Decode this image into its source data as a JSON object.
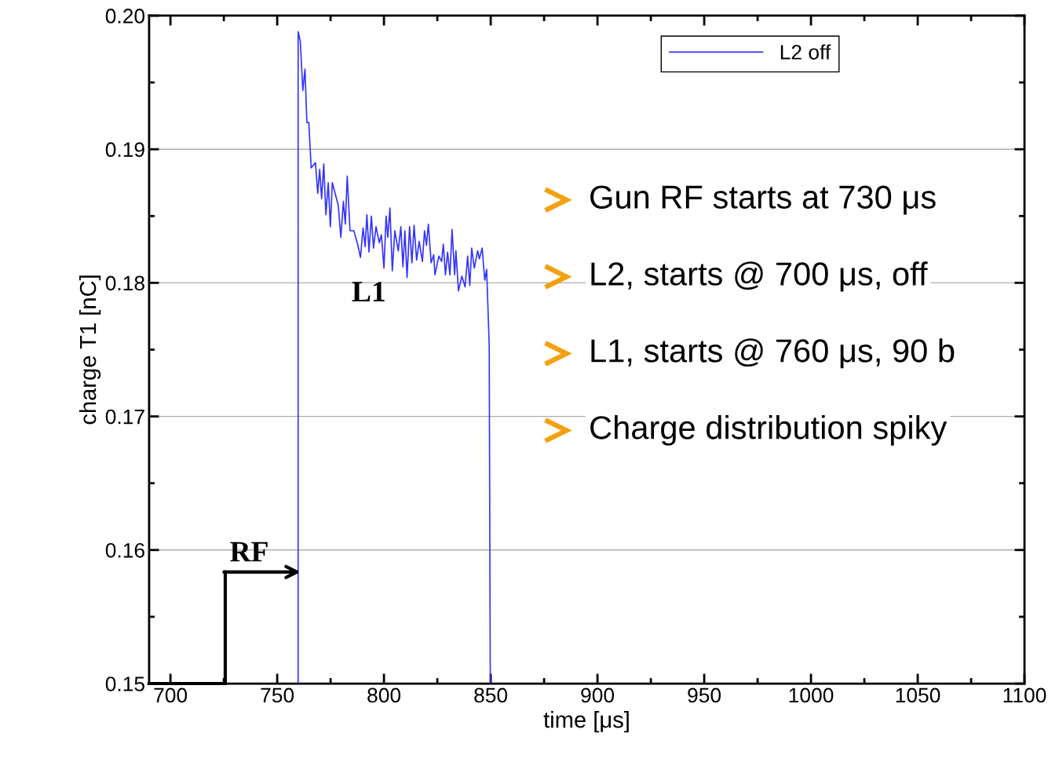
{
  "chart_data": {
    "type": "line",
    "xlabel": "time [μs]",
    "ylabel": "charge T1 [nC]",
    "xlim": [
      690,
      1100
    ],
    "ylim": [
      0.15,
      0.2
    ],
    "xticks": [
      700,
      750,
      800,
      850,
      900,
      950,
      1000,
      1050,
      1100
    ],
    "yticks": [
      0.15,
      0.16,
      0.17,
      0.18,
      0.19,
      {
        "value": 0.2,
        "label": "0.20"
      }
    ],
    "grid": "y",
    "legend": "top right",
    "marker": "none",
    "line_style": "solid",
    "series": [
      {
        "name": "L2 off",
        "color": "#3333ff",
        "x": [
          759.8,
          759.8,
          760.8,
          762.0,
          763.0,
          763.9,
          764.8,
          765.9,
          767.9,
          769.0,
          769.9,
          770.8,
          771.8,
          772.8,
          773.9,
          774.9,
          775.8,
          778.6,
          779.8,
          781.0,
          781.9,
          782.8,
          784.1,
          785.9,
          787.8,
          789.0,
          790.2,
          791.2,
          792.0,
          793.0,
          794.1,
          795.1,
          796.3,
          797.8,
          798.8,
          800.0,
          801.0,
          801.8,
          802.8,
          803.9,
          805.1,
          806.7,
          807.9,
          808.9,
          809.8,
          810.8,
          812.0,
          813.1,
          814.1,
          815.3,
          816.5,
          818.0,
          819.0,
          819.9,
          820.8,
          822.1,
          823.3,
          823.9,
          825.7,
          827.0,
          827.8,
          828.8,
          829.8,
          830.9,
          831.9,
          833.1,
          833.7,
          834.9,
          836.5,
          838.0,
          839.2,
          840.2,
          841.1,
          842.3,
          843.9,
          844.7,
          846.0,
          847.2,
          848.1,
          849.3,
          849.8
        ],
        "values": [
          0.15,
          0.1988,
          0.1981,
          0.1944,
          0.196,
          0.192,
          0.192,
          0.1886,
          0.189,
          0.1867,
          0.1885,
          0.1863,
          0.1889,
          0.1851,
          0.1875,
          0.1842,
          0.1875,
          0.1858,
          0.1834,
          0.1861,
          0.1844,
          0.188,
          0.1839,
          0.1839,
          0.1828,
          0.1819,
          0.1841,
          0.1827,
          0.1851,
          0.1823,
          0.185,
          0.1826,
          0.1842,
          0.183,
          0.1836,
          0.1811,
          0.185,
          0.1834,
          0.1856,
          0.1809,
          0.1839,
          0.1824,
          0.1842,
          0.1812,
          0.1839,
          0.1804,
          0.1842,
          0.1815,
          0.1843,
          0.1817,
          0.1831,
          0.1816,
          0.1839,
          0.1828,
          0.1844,
          0.1815,
          0.1821,
          0.1806,
          0.182,
          0.1816,
          0.1829,
          0.1806,
          0.1823,
          0.1806,
          0.184,
          0.1806,
          0.1824,
          0.1794,
          0.1805,
          0.1797,
          0.182,
          0.1798,
          0.1826,
          0.1811,
          0.1824,
          0.1818,
          0.1826,
          0.1802,
          0.181,
          0.1753,
          0.15
        ]
      }
    ],
    "annotations": [
      "RF",
      "L1",
      "Gun RF starts at 730 μs",
      "L2, starts @ 700 μs, off",
      "L1, starts @ 760 μs, 90 b",
      "Charge distribution spiky"
    ]
  }
}
